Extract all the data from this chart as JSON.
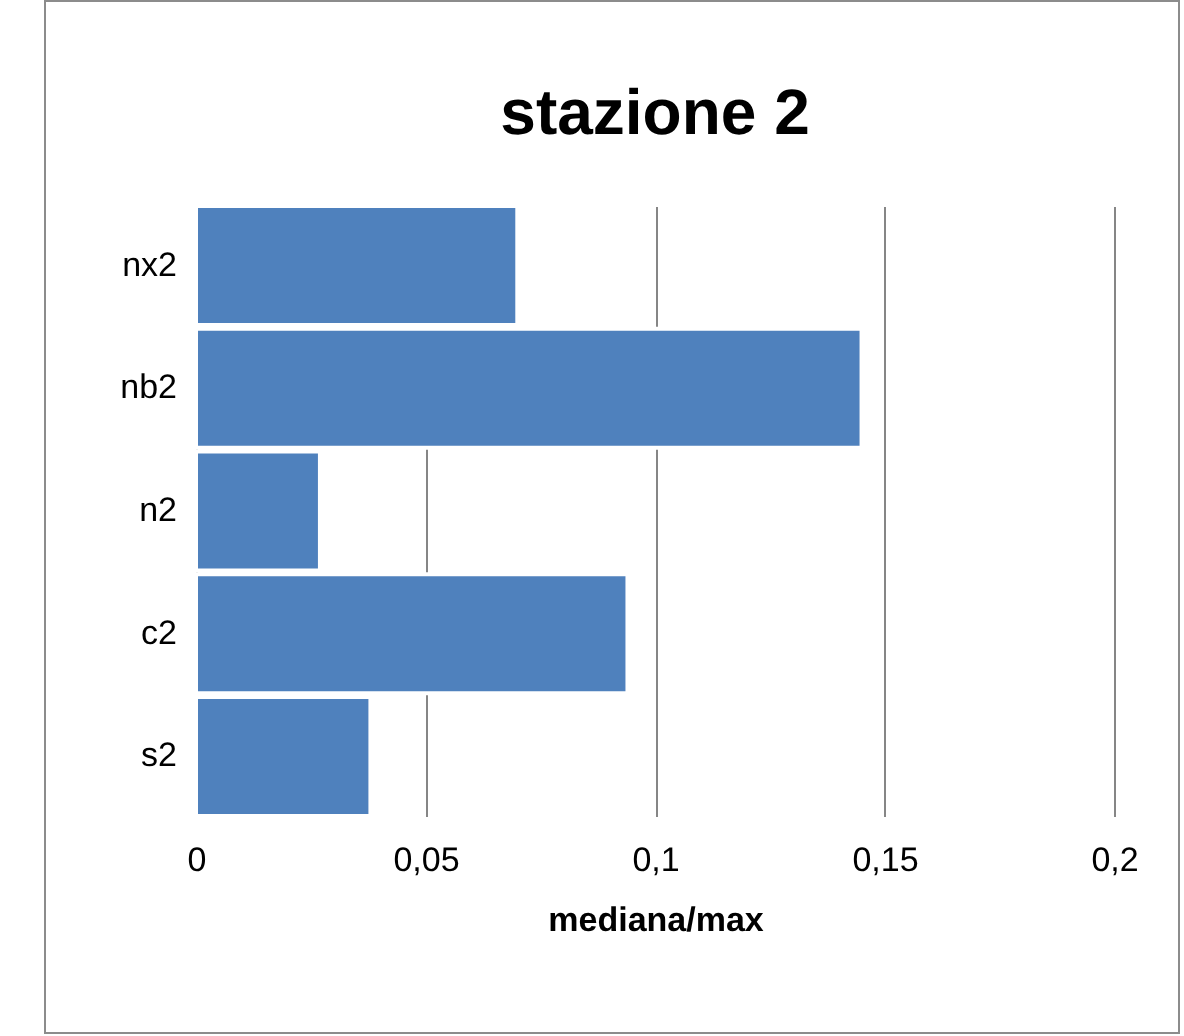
{
  "chart_data": {
    "type": "bar",
    "orientation": "horizontal",
    "title": "stazione 2",
    "xlabel": "mediana/max",
    "categories": [
      "nx2",
      "nb2",
      "n2",
      "c2",
      "s2"
    ],
    "values": [
      0.07,
      0.145,
      0.027,
      0.094,
      0.038
    ],
    "color": "#4f81bd",
    "xlim": [
      0,
      0.2
    ],
    "xticks": [
      0,
      {
        "value": 0.05,
        "label": "0,05"
      },
      {
        "value": 0.1,
        "label": "0,1"
      },
      {
        "value": 0.15,
        "label": "0,15"
      },
      {
        "value": 0.2,
        "label": "0,2"
      }
    ],
    "grid": "x"
  }
}
